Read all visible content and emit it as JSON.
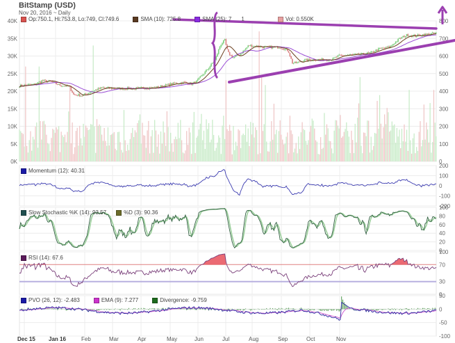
{
  "header": {
    "title": "BitStamp (USD)",
    "subtitle": "Nov 20, 2016 ~ Daily"
  },
  "legends": {
    "price": [
      {
        "label": "Op:750.1, Hi:753.8, Lo:749, Cl:749.6",
        "color": "#d9534f"
      },
      {
        "label": "SMA (10): 725.8",
        "color": "#5a3a22"
      },
      {
        "label": "SMA (25): 7",
        "color": "#8a2be2"
      },
      {
        "label": "1",
        "color": ""
      },
      {
        "label": "Vol: 0.550K",
        "color": "#e8a0a0"
      }
    ],
    "momentum": [
      {
        "label": "Momentum (12): 40.31",
        "color": "#1a1aa6"
      }
    ],
    "stochastic": [
      {
        "label": "Slow Stochastic %K (14): 93.57",
        "color": "#1f4f4f"
      },
      {
        "label": "%D (3): 90.36",
        "color": "#6b6b2a"
      }
    ],
    "rsi": [
      {
        "label": "RSI (14): 67.6",
        "color": "#5a1a5a"
      }
    ],
    "pvo": [
      {
        "label": "PVO (26, 12): -2.483",
        "color": "#1a1aa6"
      },
      {
        "label": "EMA (9): 7.277",
        "color": "#cc33cc"
      },
      {
        "label": "Divergence: -9.759",
        "color": "#1e6b1e"
      }
    ]
  },
  "colors": {
    "up": "#7dcf7d",
    "down": "#d98080",
    "vol_up": "#c5eac5",
    "vol_down": "#efc4c4",
    "sma10": "#6b3f1f",
    "sma25": "#9b4fd6",
    "momentum": "#3a3ab0",
    "stoch_k": "#2f5f3f",
    "stoch_d": "#9ccf9c",
    "rsi": "#7a3f7a",
    "rsi_fill": "#e8505a",
    "rsi70": "#e08080",
    "rsi30": "#b8b0e0",
    "pvo": "#2a2aa0",
    "pvo_ema": "#d060d0",
    "divergence": "#3a8a3a",
    "annotation": "#9b3fb0",
    "grid": "#ececec"
  },
  "chart_data": [
    {
      "type": "candlestick",
      "title": "BitStamp (USD)",
      "subtitle": "Nov 20, 2016 ~ Daily",
      "x_ticks": [
        "Dec 15",
        "Jan 16",
        "Feb",
        "Mar",
        "Apr",
        "May",
        "Jun",
        "Jul",
        "Aug",
        "Sep",
        "Oct",
        "Nov"
      ],
      "y_right_ticks": [
        0,
        100,
        200,
        300,
        400,
        500,
        600,
        700,
        800
      ],
      "y_left_ticks": [
        "0K",
        "5K",
        "10K",
        "15K",
        "20K",
        "25K",
        "30K",
        "35K",
        "40K"
      ],
      "ylim_price": [
        0,
        800
      ],
      "ylim_volume_k": [
        0,
        40
      ],
      "price_close_monthly_approx": {
        "Dec 15": 430,
        "Jan 16": 440,
        "Feb": 380,
        "Mar": 415,
        "Apr": 420,
        "May": 445,
        "Jun": 580,
        "Jul": 660,
        "Aug": 580,
        "Sep": 605,
        "Oct": 610,
        "Nov": 735
      },
      "last": {
        "open": 750.1,
        "high": 753.8,
        "low": 749,
        "close": 749.6,
        "sma10": 725.8,
        "volume_k": 0.55
      },
      "annotations": [
        "triangle trendlines",
        "upward arrow",
        "brace near May/Jun"
      ]
    },
    {
      "type": "line",
      "name": "Momentum (12)",
      "last": 40.31,
      "y_ticks": [
        200,
        100,
        0,
        -100,
        -200
      ],
      "ylim": [
        -200,
        200
      ]
    },
    {
      "type": "line",
      "name": "Slow Stochastic",
      "series": [
        {
          "name": "%K (14)",
          "last": 93.57
        },
        {
          "name": "%D (3)",
          "last": 90.36
        }
      ],
      "y_ticks": [
        0,
        20,
        40,
        60,
        80,
        100
      ],
      "ylim": [
        0,
        100
      ]
    },
    {
      "type": "line",
      "name": "RSI (14)",
      "last": 67.6,
      "y_ticks": [
        0,
        30,
        70,
        100
      ],
      "ylim": [
        0,
        100
      ],
      "bands": [
        30,
        70
      ]
    },
    {
      "type": "line",
      "name": "PVO (26, 12)",
      "series": [
        {
          "name": "PVO",
          "last": -2.483
        },
        {
          "name": "EMA (9)",
          "last": 7.277
        },
        {
          "name": "Divergence",
          "last": -9.759
        }
      ],
      "y_ticks": [
        50,
        0,
        -50,
        -100
      ],
      "ylim": [
        -100,
        50
      ]
    }
  ]
}
